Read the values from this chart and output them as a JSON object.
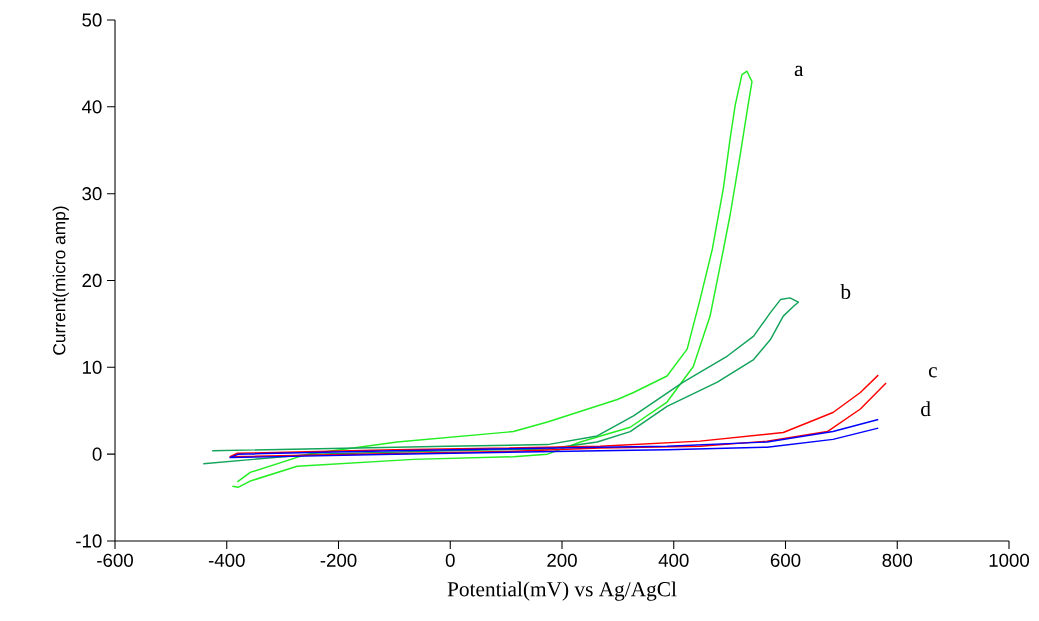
{
  "chart_data": {
    "type": "line",
    "xlabel": "Potential(mV) vs Ag/AgCl",
    "ylabel": "Current(micro amp)",
    "xlim": [
      -600,
      1000
    ],
    "ylim": [
      -10,
      50
    ],
    "xticks": [
      -600,
      -400,
      -200,
      0,
      200,
      400,
      600,
      800,
      1000
    ],
    "yticks": [
      -10,
      0,
      10,
      20,
      30,
      40,
      50
    ],
    "series": [
      {
        "name": "a",
        "color": "#22ee22",
        "x": [
          -390,
          -379,
          -358,
          -274,
          -66,
          113,
          174,
          233,
          322,
          388,
          435,
          465,
          489,
          501,
          519,
          533,
          540,
          531,
          522,
          510,
          501,
          489,
          469,
          447,
          424,
          388,
          328,
          299,
          174,
          113,
          -95,
          -256,
          -358,
          -381
        ],
        "values": [
          -3.7,
          -3.8,
          -3.1,
          -1.4,
          -0.6,
          -0.3,
          0,
          1.4,
          3.1,
          6.0,
          10.1,
          15.9,
          23.6,
          27.6,
          34.5,
          40.2,
          42.9,
          44.1,
          43.7,
          40.2,
          36.4,
          30.7,
          23.6,
          17.8,
          12.1,
          9.0,
          7.1,
          6.3,
          3.7,
          2.6,
          1.4,
          0,
          -2.1,
          -3.2
        ]
      },
      {
        "name": "b",
        "color": "#13a35a",
        "x": [
          -426,
          -5,
          174,
          263,
          328,
          417,
          496,
          543,
          573,
          591,
          608,
          623,
          614,
          596,
          573,
          543,
          478,
          388,
          322,
          263,
          174,
          -5,
          -245,
          -442
        ],
        "values": [
          0.4,
          0.9,
          1.1,
          2.1,
          4.4,
          8.3,
          11.3,
          13.6,
          16.3,
          17.8,
          18.0,
          17.5,
          17.0,
          15.9,
          13.2,
          10.9,
          8.3,
          5.5,
          2.6,
          1.4,
          0.6,
          0.4,
          0,
          -1.1
        ]
      },
      {
        "name": "c",
        "color": "#ff0000",
        "x": [
          766,
          734,
          685,
          596,
          447,
          268,
          -100,
          -381,
          -394,
          100,
          268,
          447,
          567,
          675,
          734,
          780
        ],
        "values": [
          9.1,
          7.1,
          4.8,
          2.5,
          1.5,
          0.9,
          0.5,
          0.1,
          -0.3,
          0.3,
          0.7,
          0.9,
          1.5,
          2.6,
          5.2,
          8.2
        ]
      },
      {
        "name": "d",
        "color": "#0000ff",
        "x": [
          766,
          685,
          567,
          388,
          268,
          -100,
          -379,
          -394,
          -100,
          268,
          388,
          567,
          685,
          766
        ],
        "values": [
          4.0,
          2.6,
          1.4,
          0.9,
          0.8,
          0.4,
          0.0,
          -0.4,
          0.0,
          0.4,
          0.5,
          0.8,
          1.7,
          3.0
        ]
      }
    ]
  }
}
